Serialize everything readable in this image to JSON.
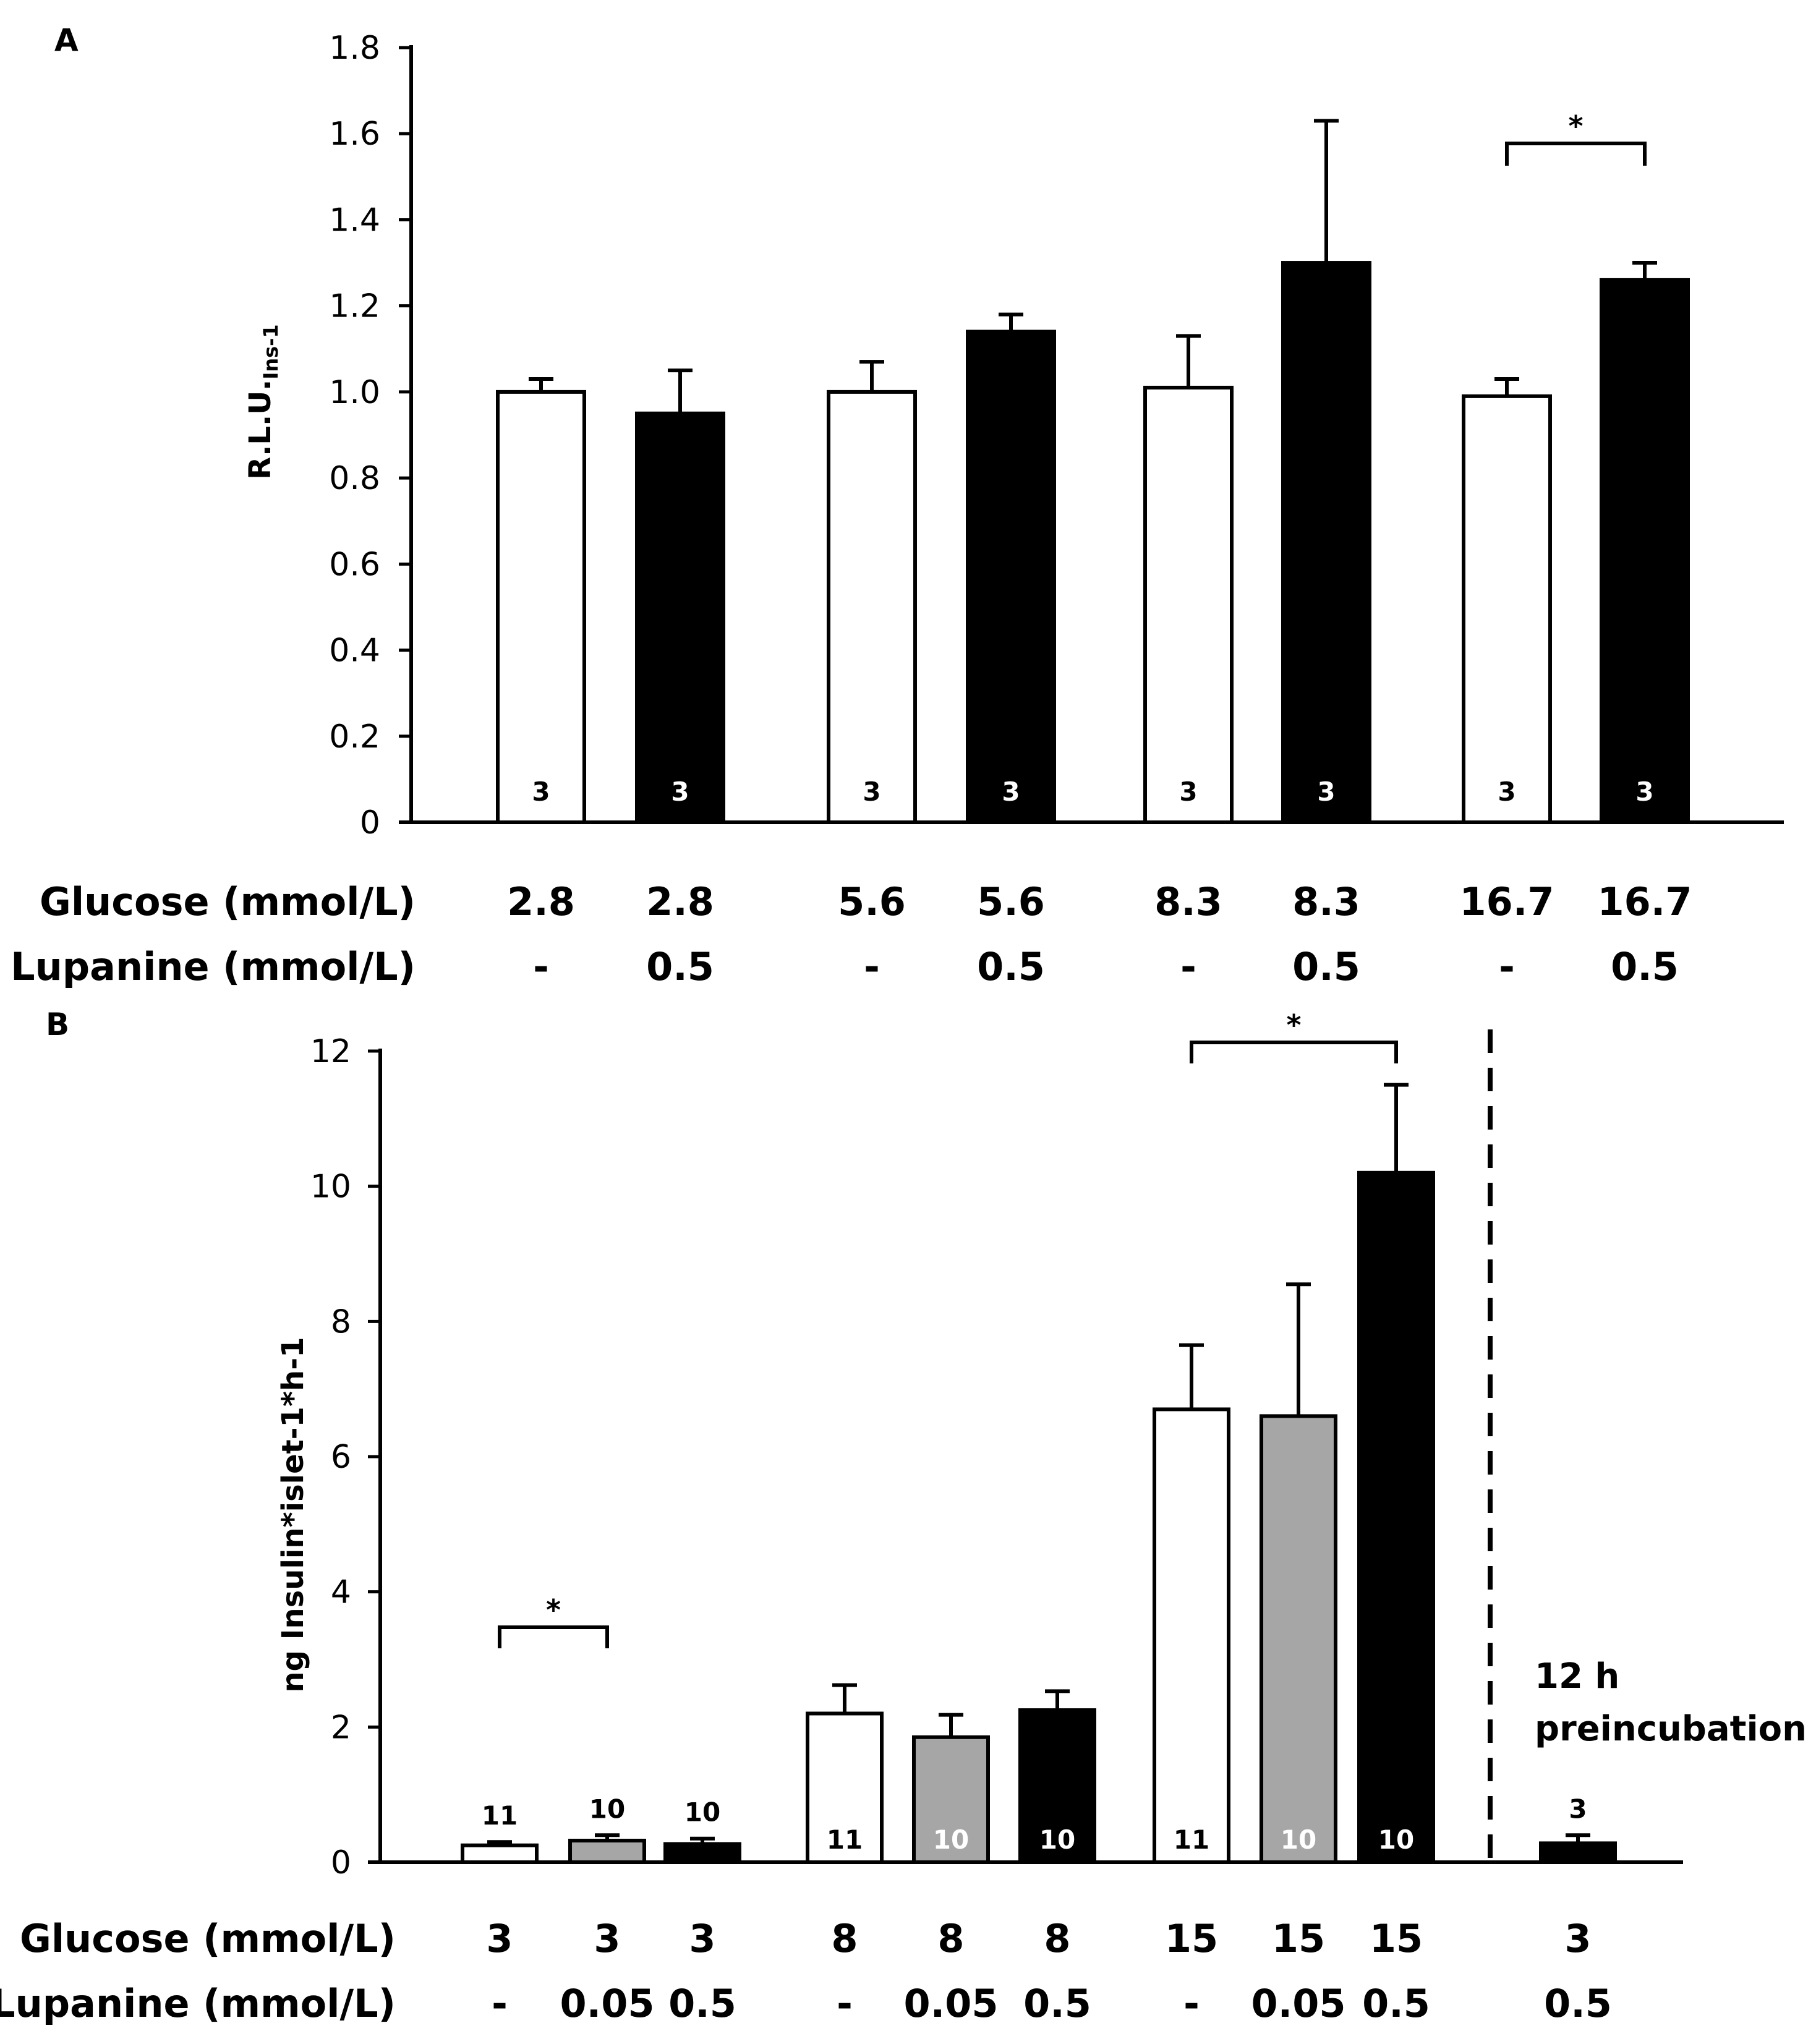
{
  "colors": {
    "white": "#ffffff",
    "gray": "#a6a6a6",
    "black": "#000000",
    "axis": "#000000"
  },
  "chart_data": [
    {
      "panel": "A",
      "type": "bar",
      "title": "",
      "ylabel": "R.L.U.",
      "ylabel_subscript": "Ins-1",
      "ylim": [
        0,
        1.8
      ],
      "yticks": [
        0,
        0.2,
        0.4,
        0.6,
        0.8,
        1.0,
        1.2,
        1.4,
        1.6,
        1.8
      ],
      "ytick_labels": [
        "0",
        "0.2",
        "0.4",
        "0.6",
        "0.8",
        "1.0",
        "1.2",
        "1.4",
        "1.6",
        "1.8"
      ],
      "row_labels": {
        "glucose": "Glucose (mmol/L)",
        "lupanine": "Lupanine (mmol/L)"
      },
      "bars": [
        {
          "glucose": "2.8",
          "lupanine": "-",
          "value": 1.0,
          "error": 0.03,
          "n": "3",
          "fill": "white"
        },
        {
          "glucose": "2.8",
          "lupanine": "0.5",
          "value": 0.95,
          "error": 0.1,
          "n": "3",
          "fill": "black"
        },
        {
          "glucose": "5.6",
          "lupanine": "-",
          "value": 1.0,
          "error": 0.07,
          "n": "3",
          "fill": "white"
        },
        {
          "glucose": "5.6",
          "lupanine": "0.5",
          "value": 1.14,
          "error": 0.04,
          "n": "3",
          "fill": "black"
        },
        {
          "glucose": "8.3",
          "lupanine": "-",
          "value": 1.01,
          "error": 0.12,
          "n": "3",
          "fill": "white"
        },
        {
          "glucose": "8.3",
          "lupanine": "0.5",
          "value": 1.3,
          "error": 0.33,
          "n": "3",
          "fill": "black"
        },
        {
          "glucose": "16.7",
          "lupanine": "-",
          "value": 0.99,
          "error": 0.04,
          "n": "3",
          "fill": "white"
        },
        {
          "glucose": "16.7",
          "lupanine": "0.5",
          "value": 1.26,
          "error": 0.04,
          "n": "3",
          "fill": "black"
        }
      ],
      "significance": [
        {
          "from": 6,
          "to": 7,
          "label": "*"
        }
      ]
    },
    {
      "panel": "B",
      "type": "bar",
      "title": "",
      "ylabel": "ng Insulin*islet-1*h-1",
      "ylim": [
        0,
        12
      ],
      "yticks": [
        0,
        2,
        4,
        6,
        8,
        10,
        12
      ],
      "ytick_labels": [
        "0",
        "2",
        "4",
        "6",
        "8",
        "10",
        "12"
      ],
      "row_labels": {
        "glucose": "Glucose (mmol/L)",
        "lupanine": "Lupanine (mmol/L)"
      },
      "bars": [
        {
          "glucose": "3",
          "lupanine": "-",
          "value": 0.25,
          "error": 0.05,
          "n": "11",
          "fill": "white"
        },
        {
          "glucose": "3",
          "lupanine": "0.05",
          "value": 0.32,
          "error": 0.08,
          "n": "10",
          "fill": "gray"
        },
        {
          "glucose": "3",
          "lupanine": "0.5",
          "value": 0.27,
          "error": 0.08,
          "n": "10",
          "fill": "black"
        },
        {
          "glucose": "8",
          "lupanine": "-",
          "value": 2.2,
          "error": 0.42,
          "n": "11",
          "fill": "white"
        },
        {
          "glucose": "8",
          "lupanine": "0.05",
          "value": 1.85,
          "error": 0.33,
          "n": "10",
          "fill": "gray"
        },
        {
          "glucose": "8",
          "lupanine": "0.5",
          "value": 2.25,
          "error": 0.28,
          "n": "10",
          "fill": "black"
        },
        {
          "glucose": "15",
          "lupanine": "-",
          "value": 6.7,
          "error": 0.95,
          "n": "11",
          "fill": "white"
        },
        {
          "glucose": "15",
          "lupanine": "0.05",
          "value": 6.6,
          "error": 1.95,
          "n": "10",
          "fill": "gray"
        },
        {
          "glucose": "15",
          "lupanine": "0.5",
          "value": 10.2,
          "error": 1.3,
          "n": "10",
          "fill": "black"
        },
        {
          "glucose": "3",
          "lupanine": "0.5",
          "value": 0.28,
          "error": 0.12,
          "n": "3",
          "fill": "black"
        }
      ],
      "significance": [
        {
          "from": 0,
          "to": 1,
          "label": "*"
        },
        {
          "from": 6,
          "to": 8,
          "label": "*"
        }
      ],
      "annotation": {
        "line1": "12 h",
        "line2": "preincubation"
      }
    }
  ]
}
